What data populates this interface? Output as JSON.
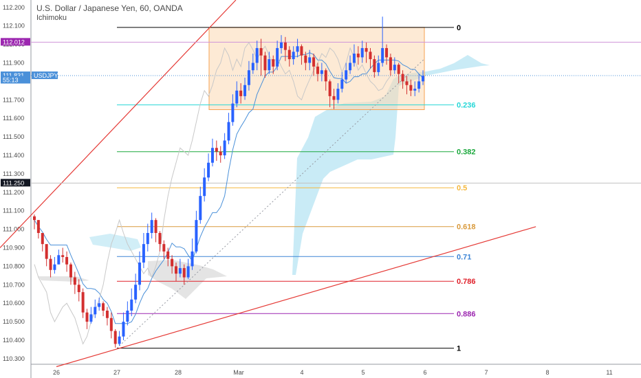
{
  "header": {
    "title": "U.S. Dollar / Japanese Yen, 60, OANDA",
    "indicator": "Ichimoku"
  },
  "chart_data": {
    "type": "candlestick",
    "symbol": "USDJPY",
    "yaxis": {
      "ticks": [
        "112.200",
        "112.100",
        "112.000",
        "111.900",
        "111.800",
        "111.700",
        "111.600",
        "111.500",
        "111.400",
        "111.300",
        "111.200",
        "111.100",
        "111.000",
        "110.900",
        "110.800",
        "110.700",
        "110.600",
        "110.500",
        "110.400",
        "110.300"
      ],
      "ylim": [
        110.27,
        112.24
      ]
    },
    "xaxis": {
      "ticks": [
        "26",
        "27",
        "28",
        "Mar",
        "4",
        "5",
        "6",
        "7",
        "8",
        "11"
      ]
    },
    "price_labels": [
      {
        "text": "112.012",
        "value": 112.012,
        "color": "#9c27b0"
      },
      {
        "text": "111.831",
        "value": 111.831,
        "color": "#4a90d9"
      },
      {
        "text": "USDJPY",
        "value": 111.831,
        "color": "#4a90d9"
      },
      {
        "text": "55:13",
        "value": 111.807,
        "color": "#4a90d9"
      },
      {
        "text": "111.250",
        "value": 111.25,
        "color": "#131722"
      }
    ],
    "fibonacci": {
      "high": 112.092,
      "low": 110.357,
      "levels": [
        {
          "label": "0",
          "value": 112.092,
          "color": "#000000"
        },
        {
          "label": "0.236",
          "value": 111.6725,
          "color": "#26d7d7"
        },
        {
          "label": "0.382",
          "value": 111.4195,
          "color": "#1aa83c"
        },
        {
          "label": "0.5",
          "value": 111.2245,
          "color": "#f5b73b"
        },
        {
          "label": "0.618",
          "value": 111.0145,
          "color": "#d99a3c"
        },
        {
          "label": "0.71",
          "value": 110.8525,
          "color": "#3d85d6"
        },
        {
          "label": "0.786",
          "value": 110.719,
          "color": "#e0202a"
        },
        {
          "label": "0.886",
          "value": 110.544,
          "color": "#9c27b0"
        },
        {
          "label": "1",
          "value": 110.357,
          "color": "#000000"
        }
      ]
    },
    "consolidation_box": {
      "top": 112.092,
      "bottom": 111.647
    },
    "channel_upper": [
      [
        0,
        110.9
      ],
      [
        0.368,
        112.24
      ]
    ],
    "channel_lower": [
      [
        0.088,
        110.257
      ],
      [
        0.836,
        111.014
      ]
    ],
    "close_series": [
      111.05,
      110.98,
      110.92,
      110.84,
      110.78,
      110.81,
      110.86,
      110.85,
      110.81,
      110.74,
      110.7,
      110.66,
      110.55,
      110.5,
      110.54,
      110.58,
      110.6,
      110.56,
      110.52,
      110.45,
      110.38,
      110.42,
      110.5,
      110.56,
      110.62,
      110.7,
      110.82,
      110.92,
      110.98,
      111.05,
      110.98,
      110.92,
      110.88,
      110.84,
      110.8,
      110.76,
      110.79,
      110.74,
      110.8,
      110.88,
      111.05,
      111.18,
      111.28,
      111.36,
      111.44,
      111.42,
      111.4,
      111.48,
      111.58,
      111.68,
      111.75,
      111.72,
      111.78,
      111.86,
      111.9,
      111.98,
      111.94,
      111.86,
      111.92,
      111.88,
      111.98,
      112.01,
      111.97,
      111.92,
      111.96,
      111.99,
      111.94,
      111.9,
      111.93,
      111.88,
      111.84,
      111.86,
      111.8,
      111.72,
      111.7,
      111.76,
      111.81,
      111.86,
      111.9,
      111.95,
      111.93,
      111.98,
      111.96,
      111.92,
      111.85,
      111.9,
      111.98,
      111.93,
      111.86,
      111.89,
      111.84,
      111.8,
      111.78,
      111.75,
      111.76,
      111.8,
      111.83
    ],
    "high_series": [
      111.08,
      111.05,
      110.98,
      110.91,
      110.86,
      110.85,
      110.89,
      110.9,
      110.88,
      110.82,
      110.77,
      110.73,
      110.68,
      110.57,
      110.58,
      110.62,
      110.63,
      110.61,
      110.58,
      110.55,
      110.46,
      110.45,
      110.55,
      110.61,
      110.68,
      110.76,
      110.88,
      110.98,
      111.03,
      111.09,
      111.06,
      110.99,
      110.94,
      110.9,
      110.86,
      110.82,
      110.84,
      110.81,
      110.84,
      110.95,
      111.1,
      111.23,
      111.33,
      111.41,
      111.49,
      111.48,
      111.45,
      111.52,
      111.63,
      111.73,
      111.8,
      111.79,
      111.82,
      111.91,
      111.95,
      112.02,
      112.03,
      111.96,
      111.96,
      111.94,
      112.02,
      112.05,
      112.04,
      111.99,
      111.99,
      112.03,
      112.0,
      111.96,
      111.97,
      111.95,
      111.9,
      111.9,
      111.87,
      111.81,
      111.76,
      111.79,
      111.85,
      111.9,
      111.94,
      112.0,
      111.99,
      112.02,
      112.01,
      111.98,
      111.94,
      111.94,
      112.15,
      112.0,
      111.95,
      111.93,
      111.9,
      111.86,
      111.83,
      111.81,
      111.8,
      111.84,
      111.86
    ],
    "low_series": [
      111.0,
      110.95,
      110.88,
      110.8,
      110.74,
      110.76,
      110.81,
      110.82,
      110.77,
      110.7,
      110.65,
      110.61,
      110.52,
      110.46,
      110.49,
      110.52,
      110.56,
      110.53,
      110.48,
      110.41,
      110.36,
      110.37,
      110.4,
      110.48,
      110.53,
      110.6,
      110.67,
      110.79,
      110.88,
      110.95,
      110.93,
      110.88,
      110.84,
      110.8,
      110.76,
      110.72,
      110.74,
      110.7,
      110.73,
      110.78,
      110.87,
      111.03,
      111.15,
      111.26,
      111.34,
      111.37,
      111.36,
      111.38,
      111.46,
      111.56,
      111.66,
      111.68,
      111.7,
      111.75,
      111.84,
      111.86,
      111.83,
      111.82,
      111.84,
      111.84,
      111.86,
      111.95,
      111.91,
      111.88,
      111.89,
      111.93,
      111.89,
      111.86,
      111.86,
      111.83,
      111.8,
      111.8,
      111.75,
      111.66,
      111.65,
      111.68,
      111.74,
      111.79,
      111.84,
      111.88,
      111.89,
      111.9,
      111.9,
      111.87,
      111.82,
      111.83,
      111.88,
      111.89,
      111.83,
      111.84,
      111.79,
      111.76,
      111.73,
      111.72,
      111.72,
      111.74,
      111.78
    ],
    "colors": {
      "up": "#2962ff",
      "down": "#d32f2f",
      "cloud": "#b2e3f2",
      "bg_band": "#f7f8f8"
    }
  }
}
